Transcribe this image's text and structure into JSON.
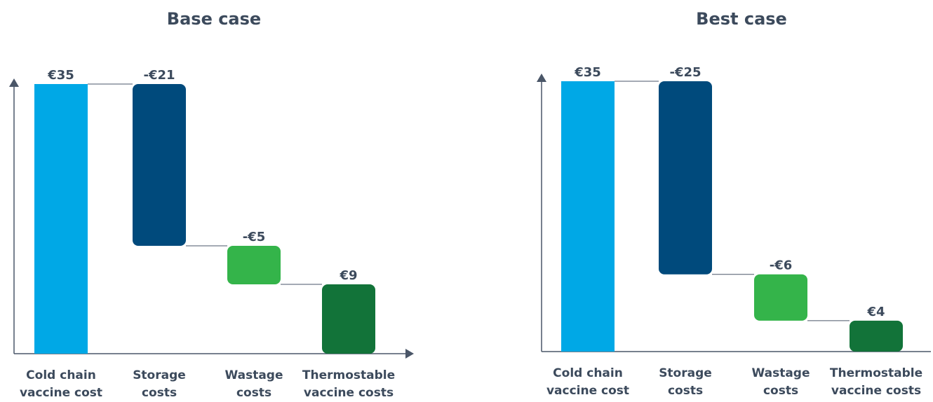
{
  "chart_data": [
    {
      "type": "waterfall",
      "title": "Base case",
      "categories": [
        [
          "Cold chain",
          "vaccine cost"
        ],
        [
          "Storage",
          "costs"
        ],
        [
          "Wastage",
          "costs"
        ],
        [
          "Thermostable",
          "vaccine costs"
        ]
      ],
      "values": [
        35,
        -21,
        -5,
        9
      ],
      "labels": [
        "€35",
        "-€21",
        "-€5",
        "€9"
      ],
      "kinds": [
        "total",
        "delta",
        "delta",
        "total"
      ],
      "colors": [
        "#00a8e6",
        "#004a7c",
        "#34b44a",
        "#127339"
      ],
      "ylim": [
        0,
        35
      ],
      "grid": false,
      "legend": "none"
    },
    {
      "type": "waterfall",
      "title": "Best case",
      "categories": [
        [
          "Cold chain",
          "vaccine cost"
        ],
        [
          "Storage",
          "costs"
        ],
        [
          "Wastage",
          "costs"
        ],
        [
          "Thermostable",
          "vaccine costs"
        ]
      ],
      "values": [
        35,
        -25,
        -6,
        4
      ],
      "labels": [
        "€35",
        "-€25",
        "-€6",
        "€4"
      ],
      "kinds": [
        "total",
        "delta",
        "delta",
        "total"
      ],
      "colors": [
        "#00a8e6",
        "#004a7c",
        "#34b44a",
        "#127339"
      ],
      "ylim": [
        0,
        35
      ],
      "grid": false,
      "legend": "none"
    }
  ],
  "style": {
    "text_color": "#3c4a5c",
    "axis_color": "#4a5668",
    "connector_color": "#4a5668"
  }
}
